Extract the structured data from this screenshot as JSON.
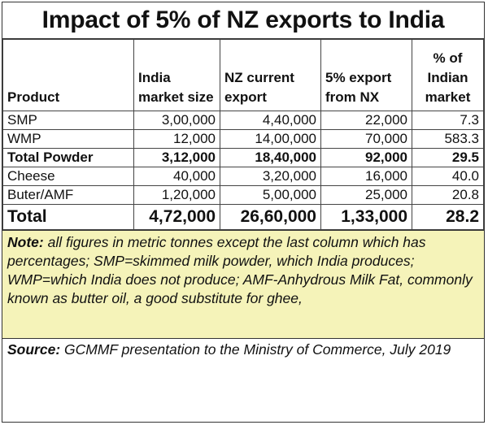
{
  "title": "Impact of 5% of NZ exports to India",
  "table": {
    "headers": {
      "product": "Product",
      "market_size": "India market size",
      "nz_export": "NZ current export",
      "export_5pct": "5% export from NX",
      "pct_market": "% of Indian market"
    },
    "rows": [
      {
        "product": "SMP",
        "market_size": "3,00,000",
        "nz_export": "4,40,000",
        "export_5pct": "22,000",
        "pct_market": "7.3"
      },
      {
        "product": "WMP",
        "market_size": "12,000",
        "nz_export": "14,00,000",
        "export_5pct": "70,000",
        "pct_market": "583.3"
      },
      {
        "product": "Total Powder",
        "market_size": "3,12,000",
        "nz_export": "18,40,000",
        "export_5pct": "92,000",
        "pct_market": "29.5"
      },
      {
        "product": "Cheese",
        "market_size": "40,000",
        "nz_export": "3,20,000",
        "export_5pct": "16,000",
        "pct_market": "40.0"
      },
      {
        "product": "Buter/AMF",
        "market_size": "1,20,000",
        "nz_export": "5,00,000",
        "export_5pct": "25,000",
        "pct_market": "20.8"
      },
      {
        "product": "Total",
        "market_size": "4,72,000",
        "nz_export": "26,60,000",
        "export_5pct": "1,33,000",
        "pct_market": "28.2"
      }
    ]
  },
  "note": {
    "label": "Note:",
    "text": " all figures in metric tonnes except the last column which has percentages; SMP=skimmed milk powder, which India produces; WMP=which India does not produce; AMF-Anhydrous Milk Fat, commonly known as butter oil, a good substitute for ghee,"
  },
  "source": {
    "label": "Source:",
    "text": " GCMMF presentation to the Ministry of Commerce, July 2019"
  }
}
